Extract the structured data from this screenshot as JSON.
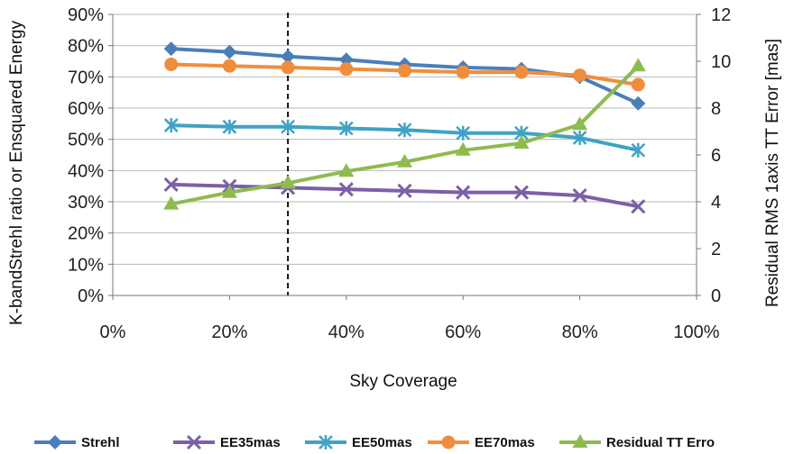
{
  "chart_data": {
    "type": "line",
    "x": [
      10,
      20,
      30,
      40,
      50,
      60,
      70,
      80,
      90
    ],
    "xlabel": "Sky Coverage",
    "ylabel": "K-bandStrehl ratio or Ensquared Energy",
    "y2label": "Residual RMS 1axis TT Error [mas]",
    "xlim": [
      0,
      100
    ],
    "ylim": [
      0,
      90
    ],
    "y2lim": [
      0,
      12
    ],
    "xticks": [
      "0%",
      "20%",
      "40%",
      "60%",
      "80%",
      "100%"
    ],
    "yticks": [
      "0%",
      "10%",
      "20%",
      "30%",
      "40%",
      "50%",
      "60%",
      "70%",
      "80%",
      "90%"
    ],
    "y2ticks": [
      "0",
      "2",
      "4",
      "6",
      "8",
      "10",
      "12"
    ],
    "vline_x": 30,
    "grid": "horizontal",
    "legend_position": "bottom",
    "series": [
      {
        "name": "Strehl",
        "axis": "left",
        "marker": "diamond",
        "color": "#4a7ebb",
        "values": [
          79,
          78,
          76.5,
          75.5,
          74,
          73,
          72.5,
          70,
          61.5
        ]
      },
      {
        "name": "EE35mas",
        "axis": "left",
        "marker": "x",
        "color": "#7d5fa6",
        "values": [
          35.5,
          35,
          34.5,
          34,
          33.5,
          33,
          33,
          32,
          28.5
        ]
      },
      {
        "name": "EE50mas",
        "axis": "left",
        "marker": "star",
        "color": "#3fa3c4",
        "values": [
          54.5,
          54,
          54,
          53.5,
          53,
          52,
          52,
          50.5,
          46.5
        ]
      },
      {
        "name": "EE70mas",
        "axis": "left",
        "marker": "circle",
        "color": "#f08d3c",
        "values": [
          74,
          73.5,
          73,
          72.5,
          72,
          71.5,
          71.5,
          70.5,
          67.5
        ]
      },
      {
        "name": "Residual TT Erro",
        "axis": "right",
        "marker": "triangle",
        "color": "#8dbb4f",
        "values": [
          3.9,
          4.4,
          4.8,
          5.3,
          5.7,
          6.2,
          6.5,
          7.3,
          9.8
        ]
      }
    ]
  }
}
